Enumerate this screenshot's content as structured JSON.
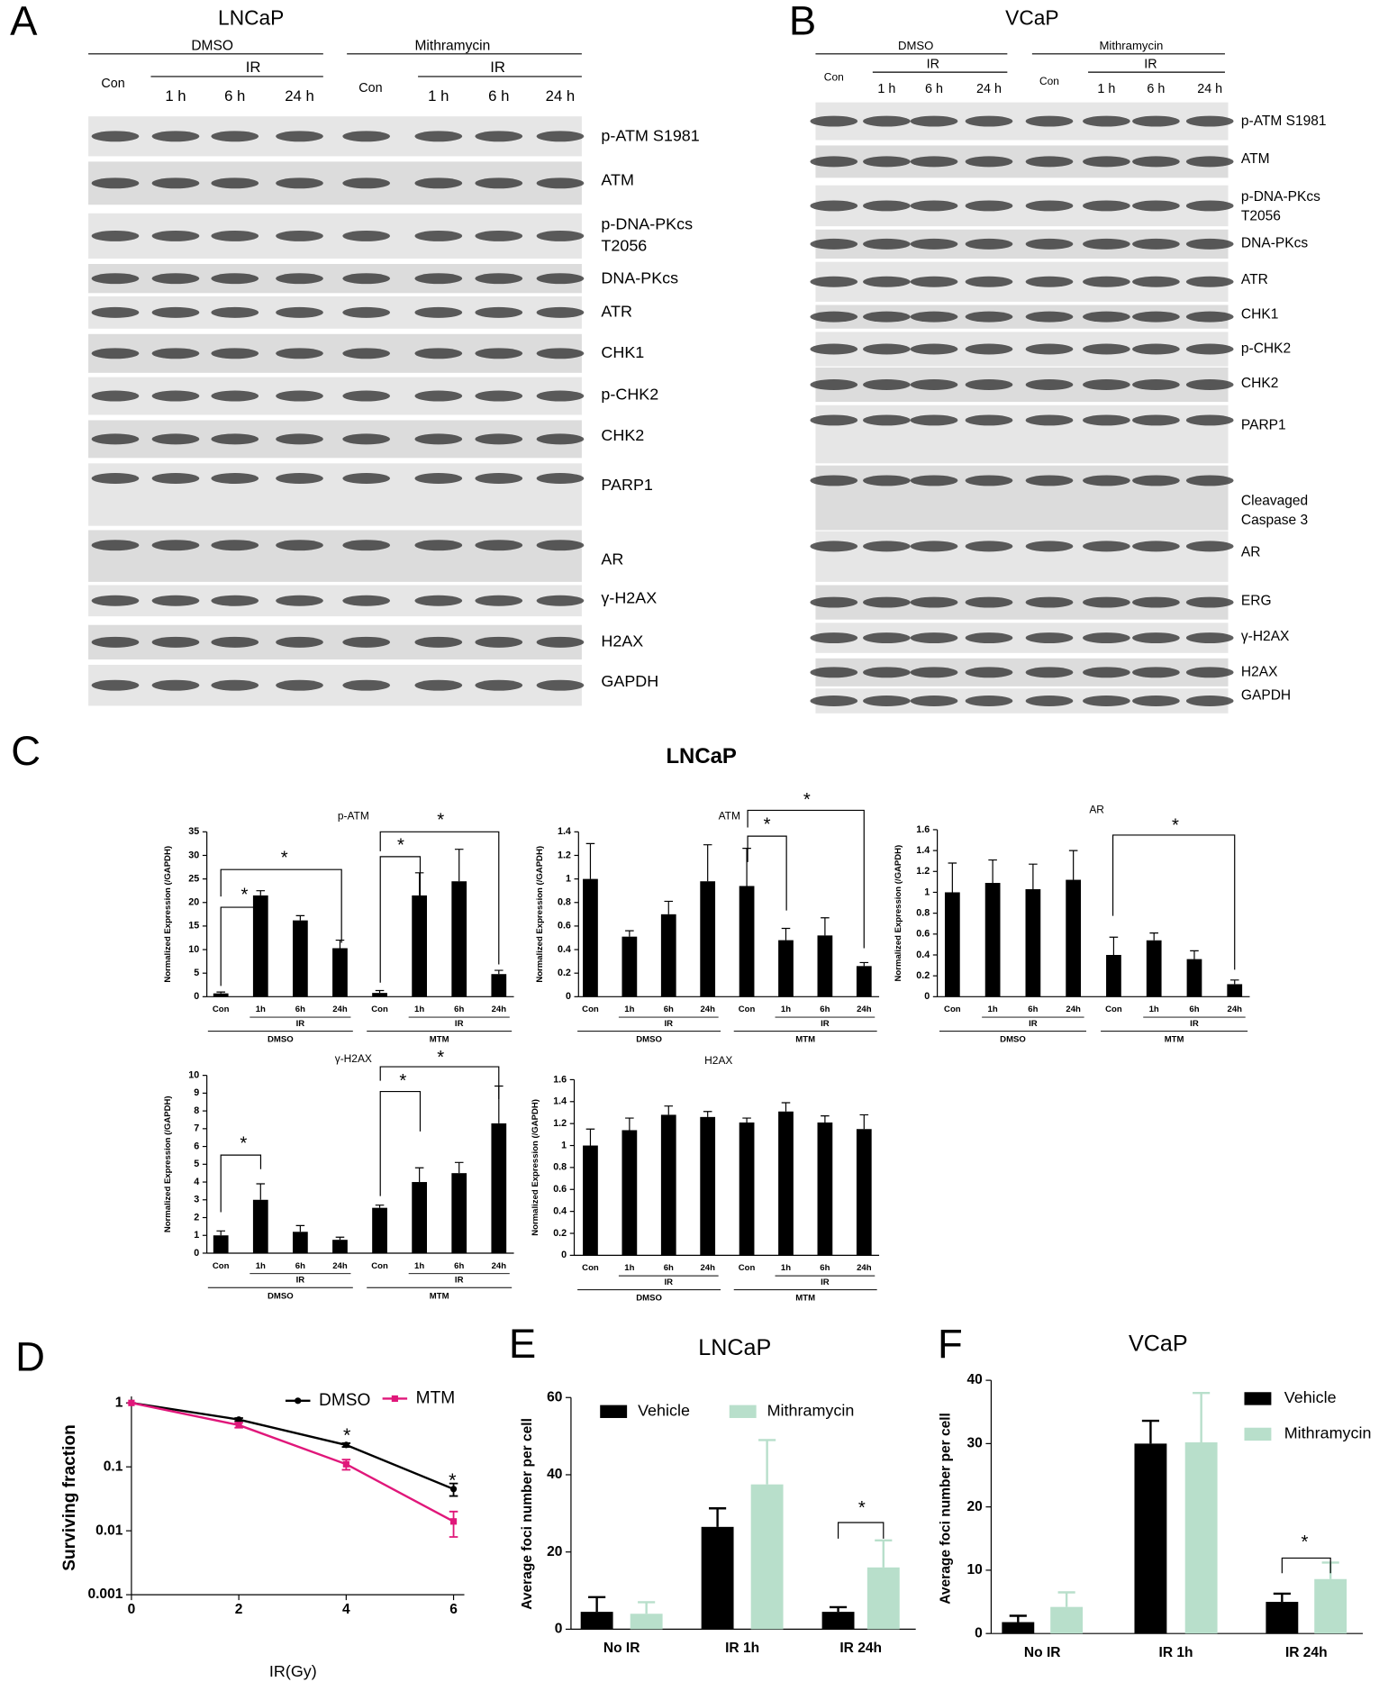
{
  "panel_labels": [
    "A",
    "B",
    "C",
    "D",
    "E",
    "F"
  ],
  "blot_a": {
    "title": "LNCaP",
    "groups": [
      {
        "name": "DMSO",
        "control": "Con",
        "treatment": "IR",
        "times": [
          "1 h",
          "6 h",
          "24 h"
        ]
      },
      {
        "name": "Mithramycin",
        "control": "Con",
        "treatment": "IR",
        "times": [
          "1 h",
          "6 h",
          "24 h"
        ]
      }
    ],
    "proteins": [
      [
        "p-ATM S1981"
      ],
      [
        "ATM"
      ],
      [
        "p-DNA-PKcs",
        "T2056"
      ],
      [
        "DNA-PKcs"
      ],
      [
        "ATR"
      ],
      [
        "CHK1"
      ],
      [
        "p-CHK2"
      ],
      [
        "CHK2"
      ],
      [
        "PARP1"
      ],
      [
        "AR"
      ],
      [
        "γ-H2AX"
      ],
      [
        "H2AX"
      ],
      [
        "GAPDH"
      ]
    ]
  },
  "blot_b": {
    "title": "VCaP",
    "groups": [
      {
        "name": "DMSO",
        "control": "Con",
        "treatment": "IR",
        "times": [
          "1 h",
          "6 h",
          "24 h"
        ]
      },
      {
        "name": "Mithramycin",
        "control": "Con",
        "treatment": "IR",
        "times": [
          "1 h",
          "6 h",
          "24 h"
        ]
      }
    ],
    "proteins": [
      [
        "p-ATM S1981"
      ],
      [
        "ATM"
      ],
      [
        "p-DNA-PKcs",
        "T2056"
      ],
      [
        "DNA-PKcs"
      ],
      [
        "ATR"
      ],
      [
        "CHK1"
      ],
      [
        "p-CHK2"
      ],
      [
        "CHK2"
      ],
      [
        "PARP1"
      ],
      [
        "Cleavaged",
        "Caspase 3"
      ],
      [
        "AR"
      ],
      [
        "ERG"
      ],
      [
        "γ-H2AX"
      ],
      [
        "H2AX"
      ],
      [
        "GAPDH"
      ]
    ]
  },
  "panel_c_title": "LNCaP",
  "chart_data": [
    {
      "type": "bar",
      "title": "p-ATM",
      "y_label": "Normalized Expression (/GAPDH)",
      "categories": [
        "Con",
        "1h",
        "6h",
        "24h",
        "Con",
        "1h",
        "6h",
        "24h"
      ],
      "values": [
        0.7,
        21.5,
        16.2,
        10.3,
        0.8,
        21.5,
        24.5,
        4.8
      ],
      "errors": [
        0.3,
        1,
        1,
        1.7,
        0.5,
        4.8,
        6.8,
        0.8
      ],
      "color": "#000000",
      "ylim": [
        0,
        35
      ],
      "yticks": [
        0,
        5,
        10,
        15,
        20,
        25,
        30,
        35
      ],
      "groups": [
        "DMSO",
        "MTM"
      ],
      "sub_label": "IR",
      "annotations": [
        "*",
        "*",
        "*",
        "*"
      ]
    },
    {
      "type": "bar",
      "title": "ATM",
      "y_label": "Normalized Expression (/GAPDH)",
      "categories": [
        "Con",
        "1h",
        "6h",
        "24h",
        "Con",
        "1h",
        "6h",
        "24h"
      ],
      "values": [
        1,
        0.51,
        0.7,
        0.98,
        0.94,
        0.48,
        0.52,
        0.26
      ],
      "errors": [
        0.3,
        0.05,
        0.11,
        0.31,
        0.32,
        0.1,
        0.15,
        0.03
      ],
      "color": "#000000",
      "ylim": [
        0,
        1.4
      ],
      "yticks": [
        0,
        0.2,
        0.4,
        0.6,
        0.8,
        1,
        1.2,
        1.4
      ],
      "groups": [
        "DMSO",
        "MTM"
      ],
      "sub_label": "IR",
      "annotations": [
        "*",
        "*"
      ]
    },
    {
      "type": "bar",
      "title": "AR",
      "y_label": "Normalized Expression (/GAPDH)",
      "categories": [
        "Con",
        "1h",
        "6h",
        "24h",
        "Con",
        "1h",
        "6h",
        "24h"
      ],
      "values": [
        1,
        1.09,
        1.03,
        1.12,
        0.4,
        0.54,
        0.36,
        0.12
      ],
      "errors": [
        0.28,
        0.22,
        0.24,
        0.28,
        0.17,
        0.07,
        0.08,
        0.04
      ],
      "color": "#000000",
      "ylim": [
        0,
        1.6
      ],
      "yticks": [
        0,
        0.2,
        0.4,
        0.6,
        0.8,
        1,
        1.2,
        1.4,
        1.6
      ],
      "groups": [
        "DMSO",
        "MTM"
      ],
      "sub_label": "IR",
      "annotations": [
        "*"
      ]
    },
    {
      "type": "bar",
      "title": "γ-H2AX",
      "y_label": "Normalized Expression (/GAPDH)",
      "categories": [
        "Con",
        "1h",
        "6h",
        "24h",
        "Con",
        "1h",
        "6h",
        "24h"
      ],
      "values": [
        1,
        3,
        1.2,
        0.75,
        2.55,
        4,
        4.5,
        7.3
      ],
      "errors": [
        0.25,
        0.9,
        0.35,
        0.15,
        0.15,
        0.8,
        0.6,
        2.1
      ],
      "color": "#000000",
      "ylim": [
        0,
        10
      ],
      "yticks": [
        0,
        1,
        2,
        3,
        4,
        5,
        6,
        7,
        8,
        9,
        10
      ],
      "groups": [
        "DMSO",
        "MTM"
      ],
      "sub_label": "IR",
      "annotations": [
        "*",
        "*",
        "*"
      ]
    },
    {
      "type": "bar",
      "title": "H2AX",
      "y_label": "Normalized Expression (/GAPDH)",
      "categories": [
        "Con",
        "1h",
        "6h",
        "24h",
        "Con",
        "1h",
        "6h",
        "24h"
      ],
      "values": [
        1,
        1.14,
        1.28,
        1.26,
        1.21,
        1.31,
        1.21,
        1.15
      ],
      "errors": [
        0.15,
        0.11,
        0.08,
        0.05,
        0.04,
        0.08,
        0.06,
        0.13
      ],
      "color": "#000000",
      "ylim": [
        0,
        1.6
      ],
      "yticks": [
        0,
        0.2,
        0.4,
        0.6,
        0.8,
        1,
        1.2,
        1.4,
        1.6
      ],
      "groups": [
        "DMSO",
        "MTM"
      ],
      "sub_label": "IR",
      "annotations": []
    },
    {
      "type": "line",
      "x_label": "IR(Gy)",
      "y_label": "Surviving fraction",
      "x": [
        0,
        2,
        4,
        6
      ],
      "series": [
        {
          "name": "DMSO",
          "color": "#000000",
          "values": [
            1,
            0.55,
            0.22,
            0.045
          ],
          "errors": [
            0,
            0.03,
            0.015,
            0.01
          ]
        },
        {
          "name": "MTM",
          "color": "#e0177a",
          "values": [
            1,
            0.45,
            0.11,
            0.014
          ],
          "errors": [
            0,
            0.04,
            0.02,
            0.006
          ]
        }
      ],
      "xlim": [
        0,
        6
      ],
      "xticks": [
        0,
        2,
        4,
        6
      ],
      "ylim": [
        0.001,
        1
      ],
      "yticks": [
        0.001,
        0.01,
        0.1,
        1
      ],
      "log_scale_y": true,
      "legend": "upper right",
      "annotations": [
        "*",
        "*"
      ]
    },
    {
      "type": "grouped_bar",
      "title": "LNCaP",
      "y_label": "Average foci number per cell",
      "categories": [
        "No IR",
        "IR 1h",
        "IR 24h"
      ],
      "series": [
        {
          "name": "Vehicle",
          "color": "#000000",
          "values": [
            4.5,
            26.5,
            4.5
          ],
          "errors": [
            3.8,
            4.8,
            1.2
          ]
        },
        {
          "name": "Mithramycin",
          "color": "#b8dfcb",
          "values": [
            4,
            37.5,
            16
          ],
          "errors": [
            3,
            11.5,
            7
          ]
        }
      ],
      "ylim": [
        0,
        60
      ],
      "yticks": [
        0,
        20,
        40,
        60
      ],
      "legend": "top",
      "annotations": [
        "*"
      ]
    },
    {
      "type": "grouped_bar",
      "title": "VCaP",
      "y_label": "Average foci number per cell",
      "categories": [
        "No IR",
        "IR 1h",
        "IR 24h"
      ],
      "series": [
        {
          "name": "Vehicle",
          "color": "#000000",
          "values": [
            1.8,
            30,
            5
          ],
          "errors": [
            1,
            3.6,
            1.3
          ]
        },
        {
          "name": "Mithramycin",
          "color": "#b8dfcb",
          "values": [
            4.2,
            30.2,
            8.6
          ],
          "errors": [
            2.3,
            7.8,
            2.6
          ]
        }
      ],
      "ylim": [
        0,
        40
      ],
      "yticks": [
        0,
        10,
        20,
        30,
        40
      ],
      "legend": "upper right",
      "annotations": [
        "*"
      ]
    }
  ]
}
